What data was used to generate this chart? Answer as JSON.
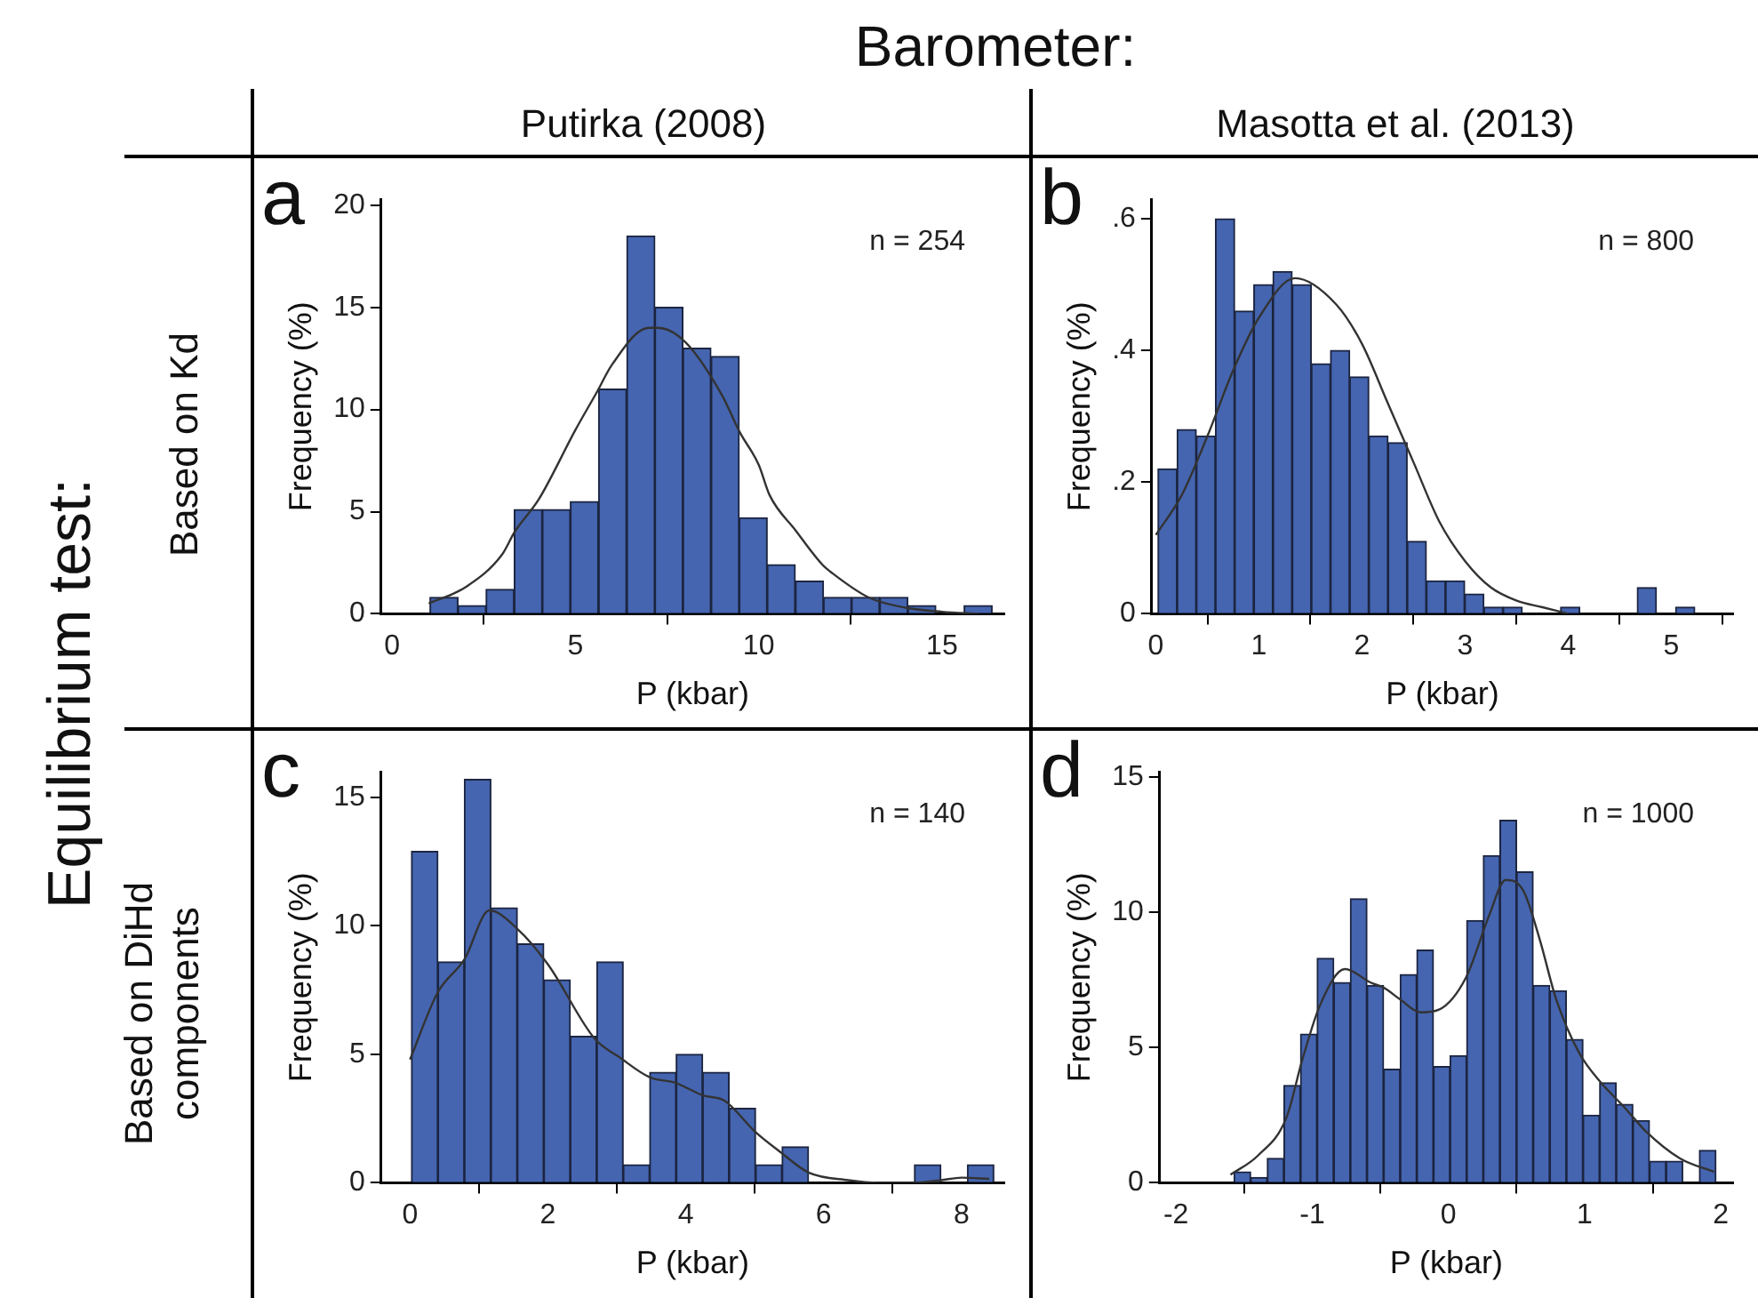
{
  "chart_data": [
    {
      "type": "histogram",
      "title": "a",
      "xlabel": "P (kbar)",
      "ylabel": "Frequency (%)",
      "color": "#4565b0",
      "bins": [
        1.03,
        1.8,
        2.56,
        3.33,
        4.1,
        4.86,
        5.63,
        6.4,
        7.17,
        7.93,
        8.7,
        9.47,
        10.23,
        11,
        11.77,
        12.53,
        13.3,
        14.07,
        14.83,
        15.6,
        16.37
      ],
      "values": [
        0.8,
        0.4,
        1.2,
        5.1,
        5.1,
        5.5,
        11,
        18.5,
        15,
        13,
        12.6,
        4.7,
        2.4,
        1.6,
        0.8,
        0.8,
        0.8,
        0.4,
        0,
        0.4
      ],
      "series": [
        {
          "type": "line",
          "color": "#333333",
          "x": [
            1,
            2,
            3,
            3.34,
            4,
            5,
            5.6,
            6,
            7,
            7.25,
            8,
            9,
            9.48,
            10,
            10.3,
            11,
            11.74,
            12,
            13,
            14,
            15,
            16
          ],
          "values": [
            0.5,
            1.3,
            2.9,
            4,
            5.6,
            9,
            10.9,
            12.2,
            14,
            14,
            13.3,
            10.7,
            8.9,
            7.3,
            5.8,
            4.1,
            2.4,
            2,
            0.8,
            0.3,
            0.1,
            0
          ]
        }
      ],
      "xlim": [
        -0.3,
        16.7
      ],
      "xticks": [
        0,
        5,
        10,
        15
      ],
      "ylim": [
        0,
        20.3
      ],
      "yticks": [
        0,
        5,
        10,
        15,
        20
      ],
      "grid": false,
      "legend": false,
      "annotations": [
        "n = 254",
        "Barometer:",
        "Putirka (2008)",
        "Equilibrium test:",
        "Based on Kd"
      ]
    },
    {
      "type": "histogram",
      "title": "b",
      "xlabel": "P (kbar)",
      "ylabel": "Frequency (%)",
      "color": "#4565b0",
      "bins": [
        0.02,
        0.206,
        0.392,
        0.578,
        0.764,
        0.95,
        1.136,
        1.322,
        1.508,
        1.694,
        1.88,
        2.066,
        2.252,
        2.438,
        2.624,
        2.81,
        2.996,
        3.182,
        3.368,
        3.554,
        3.74,
        3.926,
        4.112,
        4.298,
        4.484,
        4.67,
        4.856,
        5.042,
        5.228
      ],
      "values": [
        0.22,
        0.28,
        0.27,
        0.6,
        0.46,
        0.5,
        0.52,
        0.5,
        0.38,
        0.4,
        0.36,
        0.27,
        0.26,
        0.11,
        0.05,
        0.05,
        0.03,
        0.01,
        0.01,
        0,
        0,
        0.01,
        0,
        0,
        0,
        0.04,
        0,
        0.01
      ],
      "series": [
        {
          "type": "line",
          "color": "#333333",
          "x": [
            0,
            0.25,
            0.5,
            0.75,
            1,
            1.35,
            1.75,
            2,
            2.25,
            2.5,
            2.75,
            3,
            3.25,
            3.5,
            3.75,
            4
          ],
          "values": [
            0.12,
            0.18,
            0.27,
            0.37,
            0.45,
            0.51,
            0.47,
            0.41,
            0.32,
            0.23,
            0.14,
            0.08,
            0.04,
            0.02,
            0.01,
            0
          ]
        }
      ],
      "xlim": [
        -0.04,
        5.6
      ],
      "xticks": [
        0,
        1,
        2,
        3,
        4,
        5
      ],
      "ylim": [
        0,
        0.63
      ],
      "yticks": [
        0,
        {
          "value": 0.2,
          "label": ".2"
        },
        {
          "value": 0.4,
          "label": ".4"
        },
        {
          "value": 0.6,
          "label": ".6"
        }
      ],
      "grid": false,
      "legend": false,
      "annotations": [
        "n = 800",
        "Masotta et al. (2013)"
      ]
    },
    {
      "type": "histogram",
      "title": "c",
      "xlabel": "P (kbar)",
      "ylabel": "Frequency (%)",
      "color": "#4565b0",
      "bins": [
        0.02,
        0.404,
        0.788,
        1.172,
        1.556,
        1.94,
        2.324,
        2.708,
        3.092,
        3.476,
        3.86,
        4.244,
        4.628,
        5.012,
        5.396,
        5.78,
        6.164,
        6.548,
        6.932,
        7.316,
        7.7,
        8.084,
        8.468
      ],
      "values": [
        12.9,
        8.6,
        15.7,
        10.7,
        9.3,
        7.9,
        5.7,
        8.6,
        0.7,
        4.3,
        5,
        4.3,
        2.9,
        0.7,
        1.4,
        0,
        0,
        0,
        0,
        0.7,
        0,
        0.7
      ],
      "series": [
        {
          "type": "line",
          "color": "#333333",
          "x": [
            0,
            0.4,
            0.79,
            1.15,
            1.55,
            2,
            2.68,
            3.03,
            3.48,
            3.84,
            4.25,
            4.56,
            5,
            5.37,
            5.78,
            6.36,
            6.8,
            7.3,
            7.7,
            8,
            8.4
          ],
          "values": [
            4.8,
            7.4,
            8.7,
            10.6,
            9.9,
            8.5,
            5.6,
            4.9,
            4.1,
            3.9,
            3.4,
            3.2,
            2,
            1.2,
            0.4,
            0.1,
            0,
            0,
            0.1,
            0.2,
            0.15
          ]
        }
      ],
      "xlim": [
        -0.42,
        8.62
      ],
      "xticks": [
        0,
        2,
        4,
        6,
        8
      ],
      "ylim": [
        0,
        16
      ],
      "yticks": [
        0,
        5,
        10,
        15
      ],
      "grid": false,
      "legend": false,
      "annotations": [
        "n = 140",
        "Based on DiHd components"
      ]
    },
    {
      "type": "histogram",
      "title": "d",
      "xlabel": "P (kbar)",
      "ylabel": "Frequency (%)",
      "color": "#4565b0",
      "bins": [
        -1.574,
        -1.452,
        -1.33,
        -1.208,
        -1.086,
        -0.964,
        -0.842,
        -0.72,
        -0.598,
        -0.476,
        -0.354,
        -0.232,
        -0.11,
        0.012,
        0.134,
        0.256,
        0.378,
        0.5,
        0.622,
        0.744,
        0.866,
        0.988,
        1.11,
        1.232,
        1.354,
        1.476,
        1.598,
        1.72,
        1.842,
        1.964
      ],
      "values": [
        0.4,
        0.2,
        0.9,
        3.6,
        5.5,
        8.3,
        7.4,
        10.5,
        7.3,
        4.2,
        7.7,
        8.6,
        4.3,
        4.7,
        9.7,
        12.1,
        13.4,
        11.5,
        7.3,
        7.1,
        5.3,
        2.5,
        3.7,
        2.9,
        2.3,
        0.8,
        0.8,
        0,
        1.2
      ],
      "series": [
        {
          "type": "line",
          "color": "#333333",
          "x": [
            -1.6,
            -1.4,
            -1.19,
            -1.07,
            -0.94,
            -0.76,
            -0.57,
            -0.47,
            -0.36,
            -0.2,
            -0.07,
            0.13,
            0.3,
            0.42,
            0.55,
            0.67,
            0.79,
            0.96,
            1.12,
            1.29,
            1.45,
            1.7,
            1.95
          ],
          "values": [
            0.3,
            1,
            2.4,
            4.6,
            6.6,
            7.9,
            7.4,
            7.2,
            6.8,
            6.3,
            6.4,
            7.6,
            9.9,
            11.2,
            10.8,
            9,
            6.8,
            4.8,
            3.7,
            2.8,
            1.9,
            0.9,
            0.4
          ]
        }
      ],
      "xlim": [
        -2.12,
        2.09
      ],
      "xticks": [
        -2,
        -1,
        0,
        1,
        2
      ],
      "ylim": [
        0,
        15.2
      ],
      "yticks": [
        0,
        5,
        10,
        15
      ],
      "grid": false,
      "legend": false,
      "annotations": [
        "n = 1000"
      ]
    }
  ]
}
